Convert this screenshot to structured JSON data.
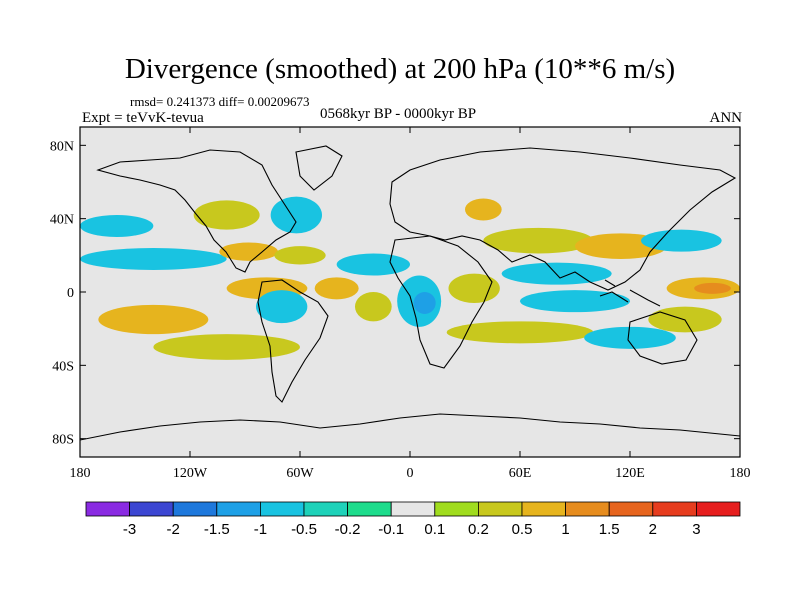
{
  "header": {
    "title": "Divergence (smoothed) at 200 hPa (10**6 m/s)",
    "stats": "rmsd= 0.241373 diff= 0.00209673",
    "experiment": "Expt = teVvK-tevua",
    "period": "0568kyr BP - 0000kyr BP",
    "season": "ANN"
  },
  "chart_data": {
    "type": "heatmap",
    "title": "Divergence (smoothed) at 200 hPa (10**6 m/s)",
    "projection": "cylindrical-equidistant",
    "xlim": [
      -180,
      180
    ],
    "ylim": [
      -90,
      90
    ],
    "x_ticks": [
      {
        "value": -180,
        "label": "180"
      },
      {
        "value": -120,
        "label": "120W"
      },
      {
        "value": -60,
        "label": "60W"
      },
      {
        "value": 0,
        "label": "0"
      },
      {
        "value": 60,
        "label": "60E"
      },
      {
        "value": 120,
        "label": "120E"
      },
      {
        "value": 180,
        "label": "180"
      }
    ],
    "y_ticks": [
      {
        "value": 80,
        "label": "80N"
      },
      {
        "value": 40,
        "label": "40N"
      },
      {
        "value": 0,
        "label": "0"
      },
      {
        "value": -40,
        "label": "40S"
      },
      {
        "value": -80,
        "label": "80S"
      }
    ],
    "colorbar": {
      "levels": [
        "-3",
        "-2",
        "-1.5",
        "-1",
        "-0.5",
        "-0.2",
        "-0.1",
        "0.1",
        "0.2",
        "0.5",
        "1",
        "1.5",
        "2",
        "3"
      ],
      "colors": [
        "#8a2be2",
        "#3c46d2",
        "#1e78dc",
        "#1ea0e6",
        "#19c3e1",
        "#1ed2b9",
        "#1edc8c",
        "#e6e6e6",
        "#a0dc1e",
        "#c8c81e",
        "#e6b41e",
        "#e68c1e",
        "#e6641e",
        "#e63c1e",
        "#e61e1e"
      ]
    },
    "field_blobs": [
      {
        "lon": -160,
        "lat": 36,
        "rlon": 20,
        "rlat": 6,
        "level": "-0.5"
      },
      {
        "lon": -100,
        "lat": 42,
        "rlon": 18,
        "rlat": 8,
        "level": "0.2"
      },
      {
        "lon": -62,
        "lat": 42,
        "rlon": 14,
        "rlat": 10,
        "level": "-0.5"
      },
      {
        "lon": -140,
        "lat": 18,
        "rlon": 40,
        "rlat": 6,
        "level": "-0.5"
      },
      {
        "lon": -88,
        "lat": 22,
        "rlon": 16,
        "rlat": 5,
        "level": "0.5"
      },
      {
        "lon": -60,
        "lat": 20,
        "rlon": 14,
        "rlat": 5,
        "level": "0.2"
      },
      {
        "lon": -78,
        "lat": 2,
        "rlon": 22,
        "rlat": 6,
        "level": "0.5"
      },
      {
        "lon": -40,
        "lat": 2,
        "rlon": 12,
        "rlat": 6,
        "level": "0.5"
      },
      {
        "lon": -140,
        "lat": -15,
        "rlon": 30,
        "rlat": 8,
        "level": "0.5"
      },
      {
        "lon": -100,
        "lat": -30,
        "rlon": 40,
        "rlat": 7,
        "level": "0.2"
      },
      {
        "lon": -70,
        "lat": -8,
        "rlon": 14,
        "rlat": 9,
        "level": "-0.5"
      },
      {
        "lon": -20,
        "lat": -8,
        "rlon": 10,
        "rlat": 8,
        "level": "0.2"
      },
      {
        "lon": -20,
        "lat": 15,
        "rlon": 20,
        "rlat": 6,
        "level": "-0.5"
      },
      {
        "lon": 5,
        "lat": -5,
        "rlon": 12,
        "rlat": 14,
        "level": "-0.5"
      },
      {
        "lon": 8,
        "lat": -6,
        "rlon": 6,
        "rlat": 6,
        "level": "-1"
      },
      {
        "lon": 35,
        "lat": 2,
        "rlon": 14,
        "rlat": 8,
        "level": "0.2"
      },
      {
        "lon": 40,
        "lat": 45,
        "rlon": 10,
        "rlat": 6,
        "level": "0.5"
      },
      {
        "lon": 70,
        "lat": 28,
        "rlon": 30,
        "rlat": 7,
        "level": "0.2"
      },
      {
        "lon": 80,
        "lat": 10,
        "rlon": 30,
        "rlat": 6,
        "level": "-0.5"
      },
      {
        "lon": 90,
        "lat": -5,
        "rlon": 30,
        "rlat": 6,
        "level": "-0.5"
      },
      {
        "lon": 60,
        "lat": -22,
        "rlon": 40,
        "rlat": 6,
        "level": "0.2"
      },
      {
        "lon": 115,
        "lat": 25,
        "rlon": 25,
        "rlat": 7,
        "level": "0.5"
      },
      {
        "lon": 148,
        "lat": 28,
        "rlon": 22,
        "rlat": 6,
        "level": "-0.5"
      },
      {
        "lon": 160,
        "lat": 2,
        "rlon": 20,
        "rlat": 6,
        "level": "0.5"
      },
      {
        "lon": 165,
        "lat": 2,
        "rlon": 10,
        "rlat": 3,
        "level": "1"
      },
      {
        "lon": 150,
        "lat": -15,
        "rlon": 20,
        "rlat": 7,
        "level": "0.2"
      },
      {
        "lon": 120,
        "lat": -25,
        "rlon": 25,
        "rlat": 6,
        "level": "-0.5"
      }
    ]
  }
}
